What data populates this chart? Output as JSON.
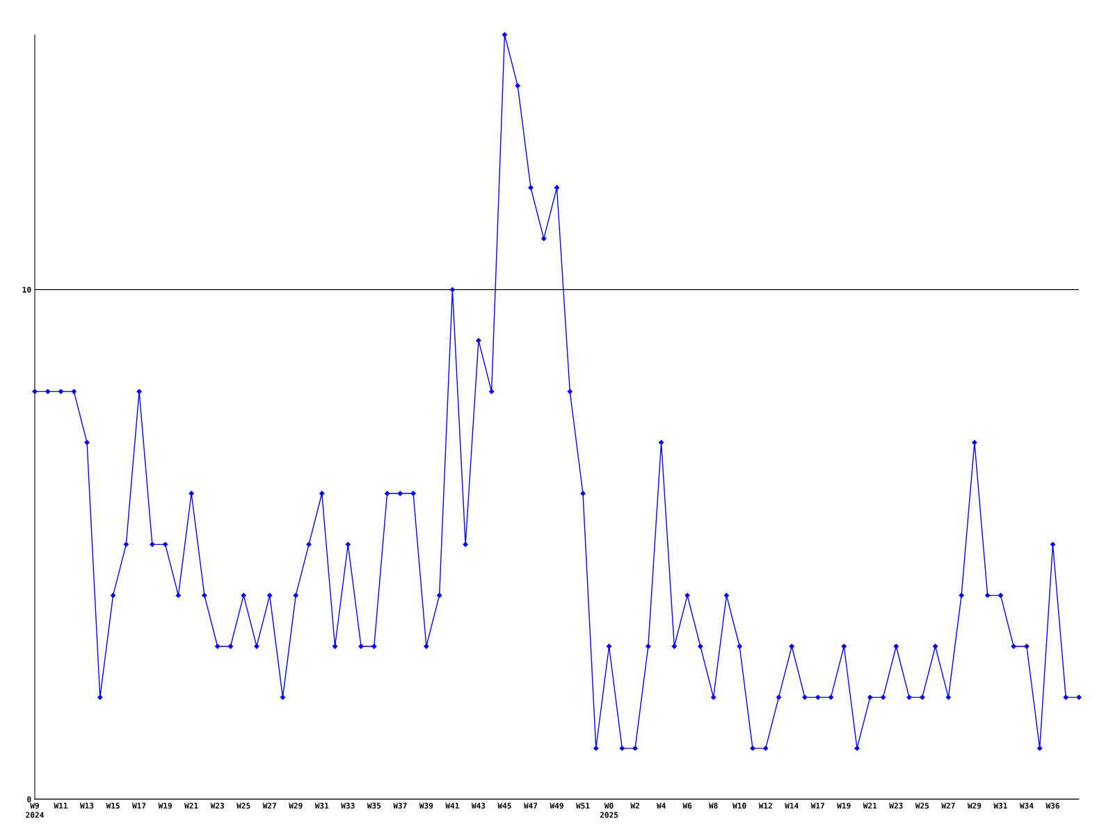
{
  "chart_data": {
    "type": "line",
    "categories": [
      "W9\n2024",
      null,
      "W11",
      null,
      "W13",
      null,
      "W15",
      null,
      "W17",
      null,
      "W19",
      null,
      "W21",
      null,
      "W23",
      null,
      "W25",
      null,
      "W27",
      null,
      "W29",
      null,
      "W31",
      null,
      "W33",
      null,
      "W35",
      null,
      "W37",
      null,
      "W39",
      null,
      "W41",
      null,
      "W43",
      null,
      "W45",
      null,
      "W47",
      null,
      "W49",
      null,
      "W51",
      null,
      "W0\n2025",
      null,
      "W2",
      null,
      "W4",
      null,
      "W6",
      null,
      "W8",
      null,
      "W10",
      null,
      "W12",
      null,
      "W14",
      null,
      "W17",
      null,
      "W19",
      null,
      "W21",
      null,
      "W23",
      null,
      "W25",
      null,
      "W27",
      null,
      "W29",
      null,
      "W31",
      null,
      "W34",
      null,
      "W36",
      null,
      null
    ],
    "series": [
      {
        "color": "#0000ff",
        "values": [
          8,
          8,
          8,
          8,
          7,
          2,
          4,
          5,
          8,
          5,
          5,
          4,
          6,
          4,
          3,
          3,
          4,
          3,
          4,
          2,
          4,
          5,
          6,
          3,
          5,
          3,
          3,
          6,
          6,
          6,
          3,
          4,
          10,
          5,
          9,
          8,
          15,
          14,
          12,
          11,
          12,
          8,
          6,
          1,
          3,
          1,
          1,
          3,
          7,
          3,
          4,
          3,
          2,
          4,
          3,
          1,
          1,
          2,
          3,
          2,
          2,
          2,
          3,
          1,
          2,
          2,
          3,
          2,
          2,
          3,
          2,
          4,
          7,
          4,
          4,
          3,
          3,
          1,
          5,
          2,
          2
        ]
      }
    ],
    "ylim": [
      0,
      15
    ],
    "yticks": [
      0,
      10
    ],
    "grid": "y",
    "marker": "diamond",
    "line_style": "solid"
  }
}
